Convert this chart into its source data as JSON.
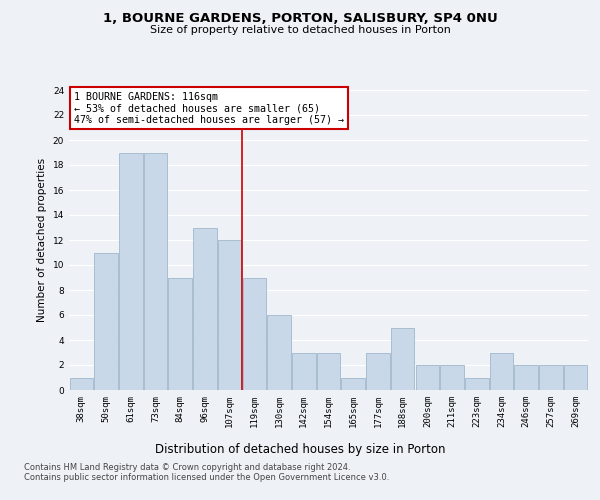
{
  "title1": "1, BOURNE GARDENS, PORTON, SALISBURY, SP4 0NU",
  "title2": "Size of property relative to detached houses in Porton",
  "xlabel": "Distribution of detached houses by size in Porton",
  "ylabel": "Number of detached properties",
  "categories": [
    "38sqm",
    "50sqm",
    "61sqm",
    "73sqm",
    "84sqm",
    "96sqm",
    "107sqm",
    "119sqm",
    "130sqm",
    "142sqm",
    "154sqm",
    "165sqm",
    "177sqm",
    "188sqm",
    "200sqm",
    "211sqm",
    "223sqm",
    "234sqm",
    "246sqm",
    "257sqm",
    "269sqm"
  ],
  "values": [
    1,
    11,
    19,
    19,
    9,
    13,
    12,
    9,
    6,
    3,
    3,
    1,
    3,
    5,
    2,
    2,
    1,
    3,
    2,
    2,
    2
  ],
  "bar_color": "#c8d8e8",
  "bar_edge_color": "#a0b8cc",
  "annotation_title": "1 BOURNE GARDENS: 116sqm",
  "annotation_line1": "← 53% of detached houses are smaller (65)",
  "annotation_line2": "47% of semi-detached houses are larger (57) →",
  "annotation_box_color": "#ffffff",
  "annotation_box_edge_color": "#cc0000",
  "red_line_color": "#cc0000",
  "ylim": [
    0,
    24
  ],
  "yticks": [
    0,
    2,
    4,
    6,
    8,
    10,
    12,
    14,
    16,
    18,
    20,
    22,
    24
  ],
  "footer1": "Contains HM Land Registry data © Crown copyright and database right 2024.",
  "footer2": "Contains public sector information licensed under the Open Government Licence v3.0.",
  "bg_color": "#eef2f7",
  "grid_color": "#ffffff",
  "title1_fontsize": 9.5,
  "title2_fontsize": 8,
  "ylabel_fontsize": 7.5,
  "xlabel_fontsize": 8.5,
  "tick_fontsize": 6.5,
  "annot_fontsize": 7.2,
  "footer_fontsize": 6.0
}
